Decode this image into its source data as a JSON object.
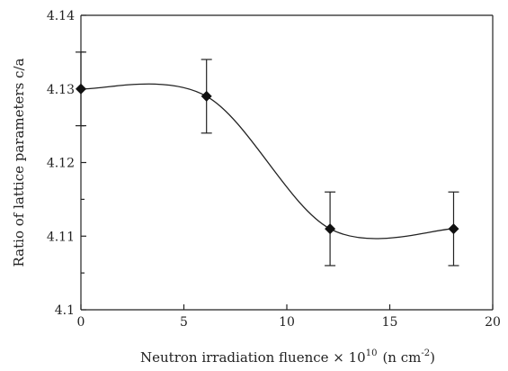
{
  "chart_data": {
    "type": "line",
    "xlabel": "Neutron irradiation fluence × 10",
    "xlabel_exp": "10",
    "xlabel_unit_a": "(n cm",
    "xlabel_unit_exp": "-2",
    "xlabel_unit_b": ")",
    "ylabel": "Ratio of lattice parameters c/a",
    "xlim": [
      0,
      20
    ],
    "ylim": [
      4.1,
      4.14
    ],
    "x_ticks": [
      0,
      5,
      10,
      15,
      20
    ],
    "x_tick_labels": [
      "0",
      "5",
      "10",
      "15",
      "20"
    ],
    "y_ticks": [
      4.1,
      4.11,
      4.12,
      4.13,
      4.14
    ],
    "y_tick_labels": [
      "4.1",
      "4.11",
      "4.12",
      "4.13",
      "4.14"
    ],
    "grid": false,
    "marker": "diamond",
    "series": [
      {
        "x": [
          0,
          6.1,
          12.1,
          18.1
        ],
        "y": [
          4.13,
          4.129,
          4.111,
          4.111
        ],
        "err": [
          0.005,
          0.005,
          0.005,
          0.005
        ],
        "color": "#111111",
        "smooth": true
      }
    ]
  }
}
